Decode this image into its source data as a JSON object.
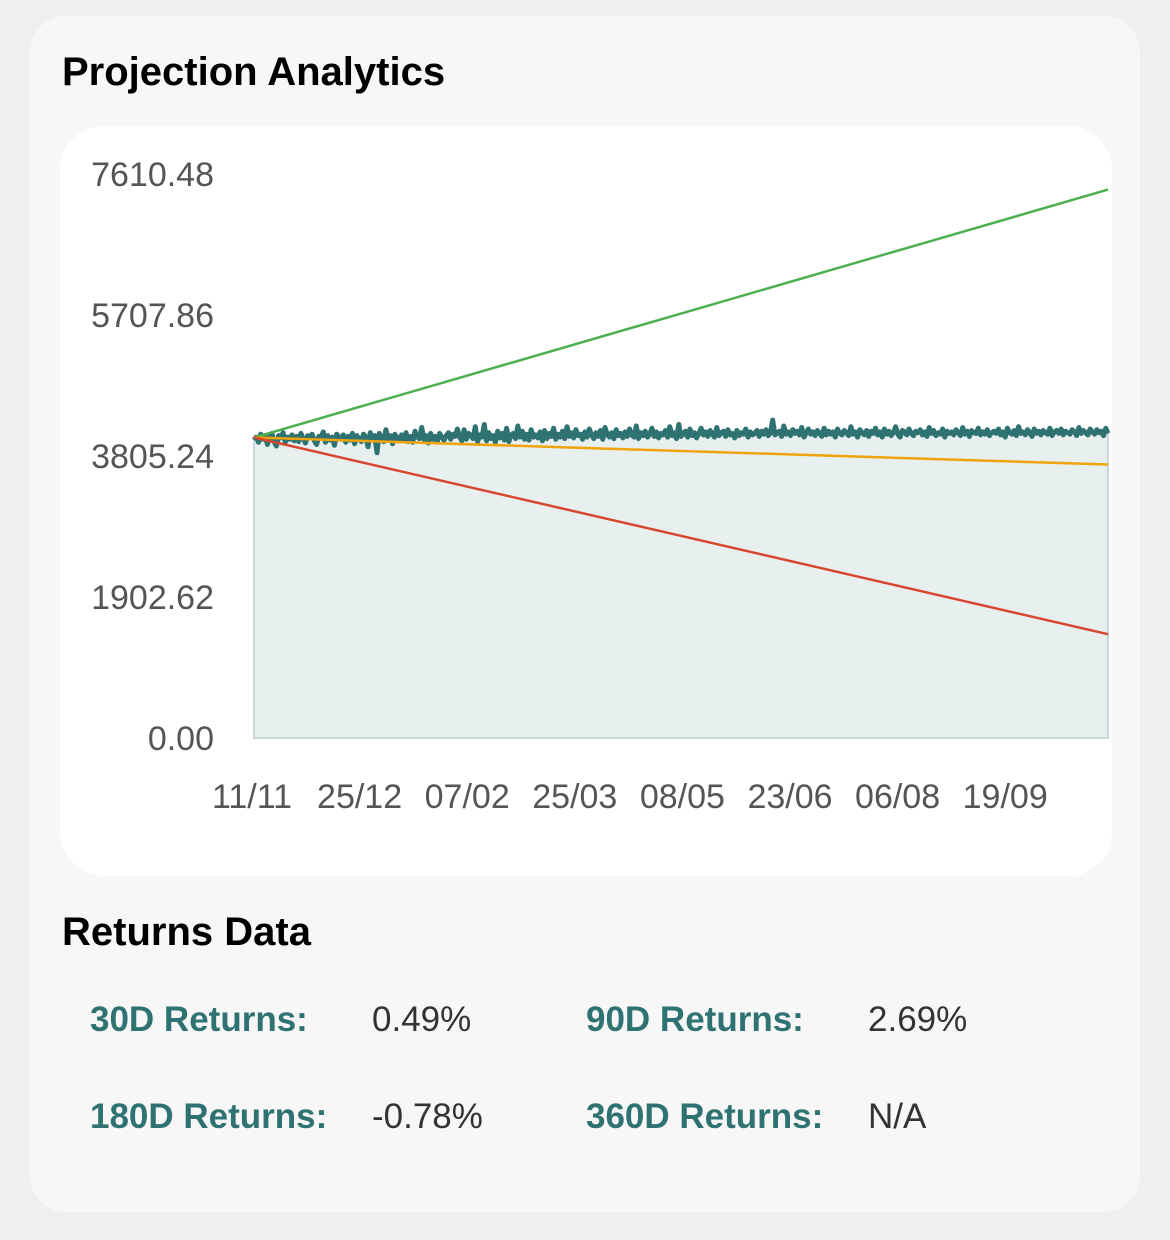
{
  "projection": {
    "title": "Projection Analytics"
  },
  "chart_data": {
    "type": "line",
    "title": "",
    "xlabel": "",
    "ylabel": "",
    "ylim": [
      0,
      7610.48
    ],
    "y_ticks": [
      "7610.48",
      "5707.86",
      "3805.24",
      "1902.62",
      "0.00"
    ],
    "x_ticks": [
      "11/11",
      "25/12",
      "07/02",
      "25/03",
      "08/05",
      "23/06",
      "06/08",
      "19/09"
    ],
    "grid": false,
    "legend": "none",
    "series": [
      {
        "color": "#2e7271",
        "fill": "#e8efef",
        "x_start": 0,
        "x_end": 360,
        "values": [
          4020,
          4060,
          3990,
          4100,
          4030,
          4080,
          3960,
          4050,
          4110,
          4000,
          3940,
          4080,
          4050,
          4120,
          3990,
          4060,
          4030,
          4090,
          4010,
          4070,
          4000,
          4110,
          4040,
          3980,
          4080,
          4050,
          4100,
          4010,
          3960,
          4070,
          4060,
          4130,
          3990,
          4080,
          4020,
          4060,
          3950,
          4100,
          4060,
          4030,
          4090,
          3990,
          4070,
          4020,
          4110,
          3970,
          4080,
          4040,
          4000,
          4100,
          4060,
          3930,
          4120,
          4040,
          4080,
          3850,
          4110,
          4050,
          4000,
          4160,
          4030,
          4080,
          3970,
          4100,
          4050,
          4010,
          4090,
          4020,
          4120,
          4000,
          4070,
          3990,
          4140,
          4060,
          4040,
          4190,
          4030,
          4080,
          3980,
          4110,
          4030,
          4070,
          4000,
          4110,
          4060,
          4020,
          4080,
          4120,
          4030,
          4100,
          4070,
          4170,
          4060,
          4010,
          4160,
          4030,
          4110,
          4080,
          4040,
          4200,
          4000,
          4090,
          4060,
          4230,
          4010,
          4120,
          4040,
          4080,
          3990,
          4140,
          4050,
          4110,
          4020,
          4180,
          4000,
          4090,
          4110,
          4040,
          4210,
          4060,
          4140,
          4030,
          4100,
          4020,
          4160,
          4060,
          4090,
          4050,
          4130,
          4010,
          4150,
          4040,
          4110,
          4070,
          4180,
          4030,
          4100,
          4060,
          4140,
          4040,
          4200,
          4070,
          4120,
          4050,
          4160,
          4080,
          4100,
          4030,
          4130,
          4060,
          4170,
          4090,
          4040,
          4120,
          4070,
          4150,
          4030,
          4190,
          4100,
          4060,
          4120,
          4040,
          4160,
          4080,
          4110,
          4050,
          4130,
          4070,
          4170,
          4090,
          4060,
          4210,
          4040,
          4120,
          4080,
          4140,
          4060,
          4100,
          4180,
          4070,
          4130,
          4050,
          4110,
          4090,
          4150,
          4060,
          4200,
          4080,
          4120,
          4040,
          4230,
          4070,
          4100,
          4140,
          4060,
          4170,
          4080,
          4120,
          4050,
          4110,
          4180,
          4090,
          4130,
          4070,
          4150,
          4100,
          4060,
          4190,
          4080,
          4120,
          4140,
          4070,
          4160,
          4090,
          4110,
          4050,
          4150,
          4080,
          4120,
          4100,
          4170,
          4060,
          4130,
          4090,
          4110,
          4150,
          4070,
          4140,
          4100,
          4160,
          4080,
          4120,
          4290,
          4090,
          4110,
          4140,
          4070,
          4210,
          4100,
          4130,
          4080,
          4160,
          4110,
          4140,
          4090,
          4190,
          4060,
          4120,
          4170,
          4100,
          4130,
          4080,
          4150,
          4110,
          4070,
          4180,
          4090,
          4140,
          4100,
          4130,
          4060,
          4170,
          4110,
          4090,
          4150,
          4120,
          4080,
          4200,
          4100,
          4130,
          4060,
          4160,
          4120,
          4090,
          4150,
          4070,
          4140,
          4110,
          4180,
          4090,
          4130,
          4060,
          4170,
          4100,
          4140,
          4080,
          4120,
          4200,
          4100,
          4060,
          4150,
          4130,
          4090,
          4170,
          4110,
          4080,
          4140,
          4120,
          4160,
          4090,
          4130,
          4070,
          4190,
          4110,
          4150,
          4080,
          4120,
          4100,
          4170,
          4060,
          4140,
          4110,
          4130,
          4090,
          4160,
          4120,
          4080,
          4190,
          4100,
          4140,
          4070,
          4150,
          4120,
          4110,
          4180,
          4090,
          4130,
          4100,
          4160,
          4080,
          4120,
          4140,
          4110,
          4170,
          4090,
          4130,
          4060,
          4180,
          4120,
          4100,
          4150,
          4080,
          4200,
          4110,
          4130,
          4090,
          4160,
          4120,
          4070,
          4170,
          4110,
          4140,
          4090,
          4150,
          4120,
          4100,
          4180,
          4080,
          4130,
          4150,
          4110,
          4170,
          4090,
          4140,
          4120,
          4100,
          4160,
          4130,
          4080,
          4190,
          4110,
          4150,
          4120,
          4090,
          4170,
          4130,
          4100,
          4160,
          4120,
          4140,
          4080,
          4180,
          4110
        ]
      },
      {
        "color": "#4caf50",
        "x_start": 0,
        "x_end": 360,
        "values": [
          4055,
          7400
        ]
      },
      {
        "color": "#f0a30a",
        "x_start": 0,
        "x_end": 360,
        "values": [
          4055,
          3690
        ]
      },
      {
        "color": "#d9462f",
        "x_start": 0,
        "x_end": 360,
        "values": [
          4055,
          1400
        ]
      }
    ]
  },
  "returns": {
    "title": "Returns Data",
    "items": [
      {
        "label": "30D Returns:",
        "value": "0.49%"
      },
      {
        "label": "90D Returns:",
        "value": "2.69%"
      },
      {
        "label": "180D Returns:",
        "value": "-0.78%"
      },
      {
        "label": "360D Returns:",
        "value": "N/A"
      }
    ]
  }
}
